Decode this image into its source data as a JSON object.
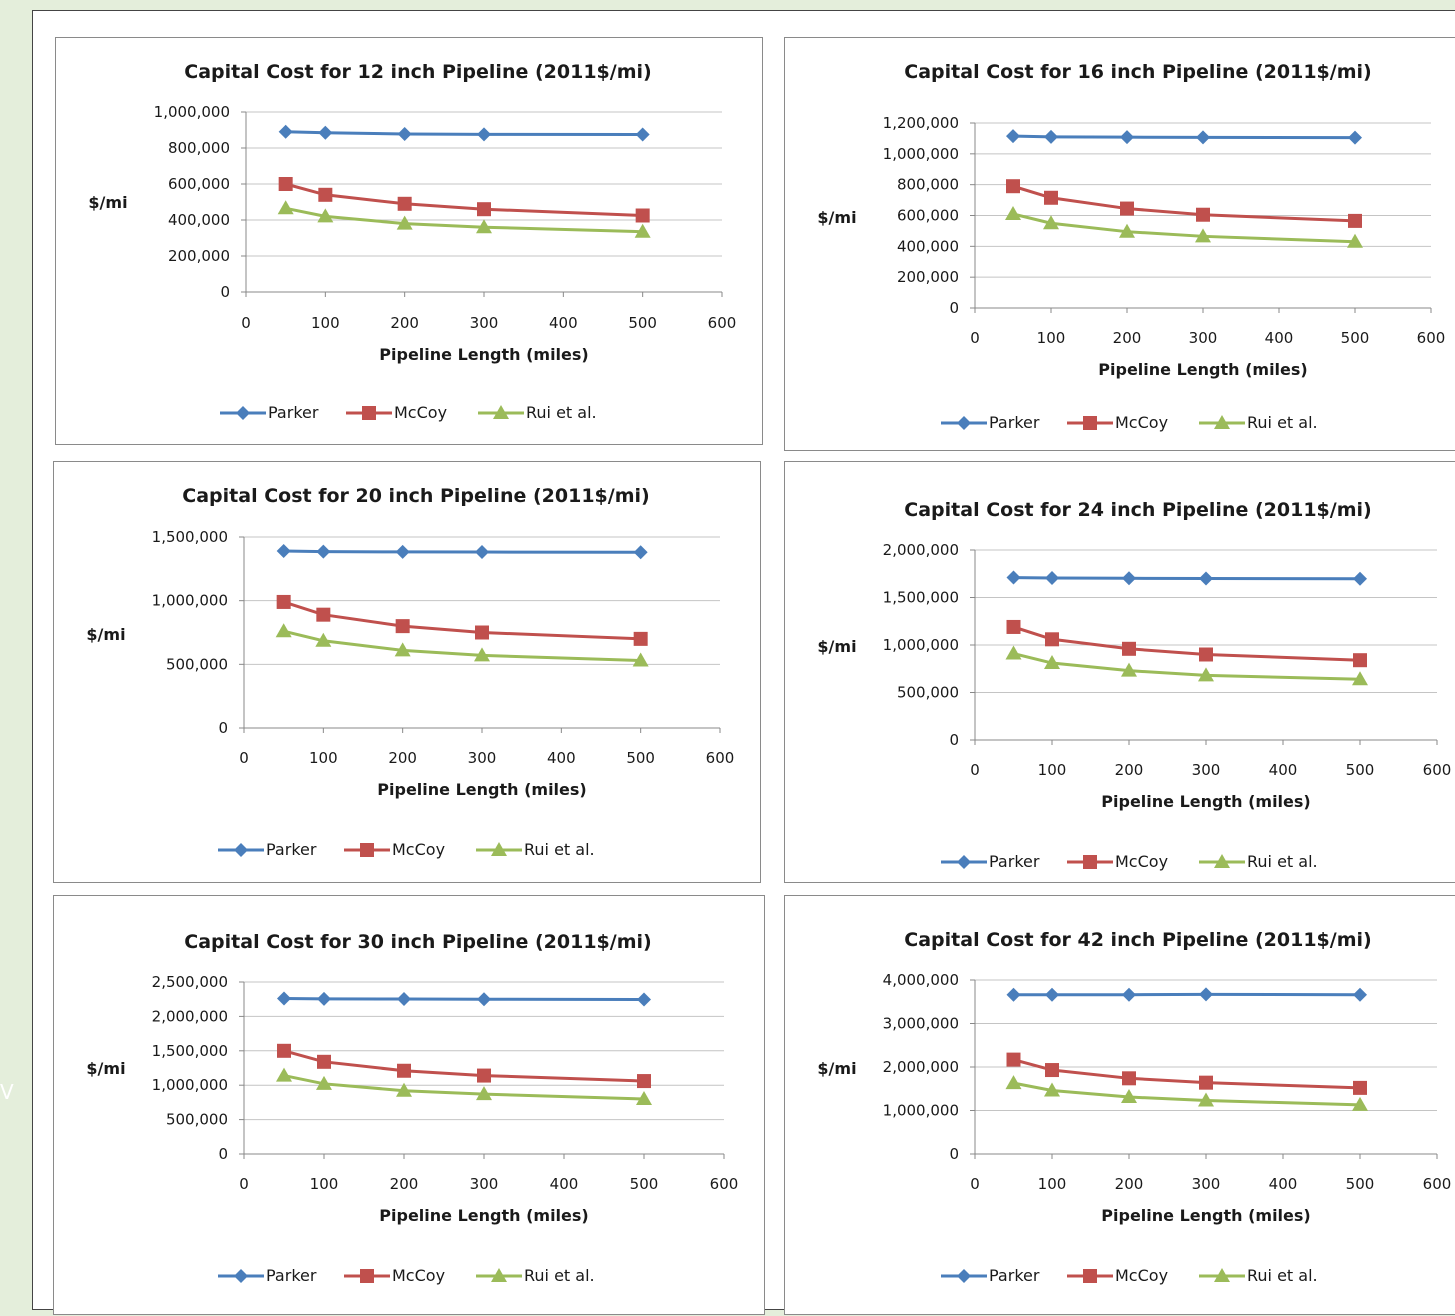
{
  "side_letter": "V",
  "colors": {
    "Parker": "#4a7ebb",
    "McCoy": "#c0504d",
    "Rui et al.": "#9bbb59"
  },
  "chart_data": [
    {
      "type": "line",
      "title": "Capital Cost for 12 inch Pipeline (2011$/mi)",
      "xlabel": "Pipeline Length (miles)",
      "ylabel": "$/mi",
      "xlim": [
        0,
        600
      ],
      "xticks": [
        0,
        100,
        200,
        300,
        400,
        500,
        600
      ],
      "ylim": [
        0,
        1000000
      ],
      "yticks": [
        0,
        200000,
        400000,
        600000,
        800000,
        1000000
      ],
      "ytick_labels": [
        "0",
        "200,000",
        "400,000",
        "600,000",
        "800,000",
        "1,000,000"
      ],
      "x": [
        50,
        100,
        200,
        300,
        500
      ],
      "series": [
        {
          "name": "Parker",
          "marker": "diamond",
          "values": [
            890000,
            885000,
            878000,
            876000,
            875000
          ]
        },
        {
          "name": "McCoy",
          "marker": "square",
          "values": [
            600000,
            540000,
            490000,
            460000,
            425000
          ]
        },
        {
          "name": "Rui et al.",
          "marker": "triangle",
          "values": [
            465000,
            420000,
            380000,
            360000,
            335000
          ]
        }
      ],
      "legend_position": "bottom"
    },
    {
      "type": "line",
      "title": "Capital Cost for 16 inch Pipeline (2011$/mi)",
      "xlabel": "Pipeline Length (miles)",
      "ylabel": "$/mi",
      "xlim": [
        0,
        600
      ],
      "xticks": [
        0,
        100,
        200,
        300,
        400,
        500,
        600
      ],
      "ylim": [
        0,
        1200000
      ],
      "yticks": [
        0,
        200000,
        400000,
        600000,
        800000,
        1000000,
        1200000
      ],
      "ytick_labels": [
        "0",
        "200,000",
        "400,000",
        "600,000",
        "800,000",
        "1,000,000",
        "1,200,000"
      ],
      "x": [
        50,
        100,
        200,
        300,
        500
      ],
      "series": [
        {
          "name": "Parker",
          "marker": "diamond",
          "values": [
            1115000,
            1110000,
            1108000,
            1107000,
            1105000
          ]
        },
        {
          "name": "McCoy",
          "marker": "square",
          "values": [
            790000,
            715000,
            645000,
            605000,
            565000
          ]
        },
        {
          "name": "Rui et al.",
          "marker": "triangle",
          "values": [
            610000,
            550000,
            495000,
            465000,
            430000
          ]
        }
      ],
      "legend_position": "bottom"
    },
    {
      "type": "line",
      "title": "Capital Cost for 20 inch Pipeline (2011$/mi)",
      "xlabel": "Pipeline Length (miles)",
      "ylabel": "$/mi",
      "xlim": [
        0,
        600
      ],
      "xticks": [
        0,
        100,
        200,
        300,
        400,
        500,
        600
      ],
      "ylim": [
        0,
        1500000
      ],
      "yticks": [
        0,
        500000,
        1000000,
        1500000
      ],
      "ytick_labels": [
        "0",
        "500,000",
        "1,000,000",
        "1,500,000"
      ],
      "x": [
        50,
        100,
        200,
        300,
        500
      ],
      "series": [
        {
          "name": "Parker",
          "marker": "diamond",
          "values": [
            1390000,
            1385000,
            1383000,
            1382000,
            1380000
          ]
        },
        {
          "name": "McCoy",
          "marker": "square",
          "values": [
            990000,
            890000,
            800000,
            750000,
            700000
          ]
        },
        {
          "name": "Rui et al.",
          "marker": "triangle",
          "values": [
            760000,
            685000,
            610000,
            570000,
            530000
          ]
        }
      ],
      "legend_position": "bottom"
    },
    {
      "type": "line",
      "title": "Capital Cost for 24 inch Pipeline (2011$/mi)",
      "xlabel": "Pipeline Length (miles)",
      "ylabel": "$/mi",
      "xlim": [
        0,
        600
      ],
      "xticks": [
        0,
        100,
        200,
        300,
        400,
        500,
        600
      ],
      "ylim": [
        0,
        2000000
      ],
      "yticks": [
        0,
        500000,
        1000000,
        1500000,
        2000000
      ],
      "ytick_labels": [
        "0",
        "500,000",
        "1,000,000",
        "1,500,000",
        "2,000,000"
      ],
      "x": [
        50,
        100,
        200,
        300,
        500
      ],
      "series": [
        {
          "name": "Parker",
          "marker": "diamond",
          "values": [
            1710000,
            1705000,
            1702000,
            1700000,
            1698000
          ]
        },
        {
          "name": "McCoy",
          "marker": "square",
          "values": [
            1190000,
            1060000,
            960000,
            900000,
            840000
          ]
        },
        {
          "name": "Rui et al.",
          "marker": "triangle",
          "values": [
            910000,
            810000,
            730000,
            680000,
            640000
          ]
        }
      ],
      "legend_position": "bottom"
    },
    {
      "type": "line",
      "title": "Capital Cost for 30 inch Pipeline (2011$/mi)",
      "xlabel": "Pipeline Length (miles)",
      "ylabel": "$/mi",
      "xlim": [
        0,
        600
      ],
      "xticks": [
        0,
        100,
        200,
        300,
        400,
        500,
        600
      ],
      "ylim": [
        0,
        2500000
      ],
      "yticks": [
        0,
        500000,
        1000000,
        1500000,
        2000000,
        2500000
      ],
      "ytick_labels": [
        "0",
        "500,000",
        "1,000,000",
        "1,500,000",
        "2,000,000",
        "2,500,000"
      ],
      "x": [
        50,
        100,
        200,
        300,
        500
      ],
      "series": [
        {
          "name": "Parker",
          "marker": "diamond",
          "values": [
            2260000,
            2255000,
            2252000,
            2250000,
            2245000
          ]
        },
        {
          "name": "McCoy",
          "marker": "square",
          "values": [
            1500000,
            1340000,
            1210000,
            1140000,
            1060000
          ]
        },
        {
          "name": "Rui et al.",
          "marker": "triangle",
          "values": [
            1140000,
            1020000,
            920000,
            870000,
            800000
          ]
        }
      ],
      "legend_position": "bottom"
    },
    {
      "type": "line",
      "title": "Capital Cost for 42 inch Pipeline (2011$/mi)",
      "xlabel": "Pipeline Length (miles)",
      "ylabel": "$/mi",
      "xlim": [
        0,
        600
      ],
      "xticks": [
        0,
        100,
        200,
        300,
        400,
        500,
        600
      ],
      "ylim": [
        0,
        4000000
      ],
      "yticks": [
        0,
        1000000,
        2000000,
        3000000,
        4000000
      ],
      "ytick_labels": [
        "0",
        "1,000,000",
        "2,000,000",
        "3,000,000",
        "4,000,000"
      ],
      "x": [
        50,
        100,
        200,
        300,
        500
      ],
      "series": [
        {
          "name": "Parker",
          "marker": "diamond",
          "values": [
            3660000,
            3660000,
            3662000,
            3670000,
            3660000
          ]
        },
        {
          "name": "McCoy",
          "marker": "square",
          "values": [
            2170000,
            1930000,
            1740000,
            1640000,
            1520000
          ]
        },
        {
          "name": "Rui et al.",
          "marker": "triangle",
          "values": [
            1630000,
            1460000,
            1310000,
            1230000,
            1130000
          ]
        }
      ],
      "legend_position": "bottom"
    }
  ]
}
